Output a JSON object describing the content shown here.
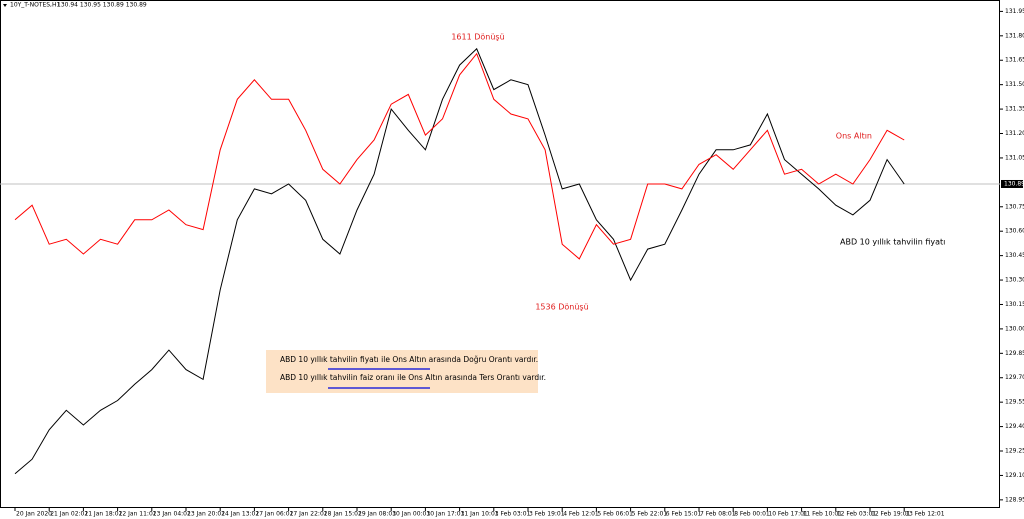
{
  "chart_data": {
    "type": "line",
    "symbol": "10Y_T-NOTES,H1",
    "ohlc": "130.94 130.95 130.89 130.89",
    "categories": [
      "20 Jan 2020",
      null,
      "21 Jan 02:01",
      null,
      "21 Jan 18:01",
      null,
      "22 Jan 11:01",
      null,
      "23 Jan 04:01",
      null,
      "23 Jan 20:01",
      null,
      "24 Jan 13:01",
      null,
      "27 Jan 06:01",
      null,
      "27 Jan 22:01",
      null,
      "28 Jan 15:01",
      null,
      "29 Jan 08:01",
      null,
      "30 Jan 00:01",
      null,
      "30 Jan 17:01",
      null,
      "31 Jan 10:01",
      null,
      "3 Feb 03:01",
      null,
      "3 Feb 19:01",
      null,
      "4 Feb 12:01",
      null,
      "5 Feb 06:01",
      null,
      "5 Feb 22:01",
      null,
      "6 Feb 15:01",
      null,
      "7 Feb 08:01",
      null,
      "8 Feb 00:01",
      null,
      "10 Feb 17:01",
      null,
      "11 Feb 10:01",
      null,
      "12 Feb 03:01",
      null,
      "12 Feb 19:01",
      null,
      "13 Feb 12:01"
    ],
    "series": [
      {
        "name": "ABD 10 yıllık tahvilin fiyatı",
        "color": "#000000",
        "values": [
          129.11,
          129.2,
          129.38,
          129.5,
          129.41,
          129.5,
          129.56,
          129.66,
          129.75,
          129.87,
          129.75,
          129.69,
          130.24,
          130.67,
          130.86,
          130.83,
          130.89,
          130.79,
          130.55,
          130.46,
          130.73,
          130.95,
          131.35,
          131.22,
          131.1,
          131.41,
          131.62,
          131.72,
          131.47,
          131.53,
          131.5,
          131.19,
          130.86,
          130.89,
          130.67,
          130.55,
          130.3,
          130.49,
          130.52,
          130.73,
          130.95,
          131.1,
          131.1,
          131.13,
          131.32,
          131.04,
          130.95,
          130.86,
          130.76,
          130.7,
          130.79,
          131.04,
          130.89
        ]
      },
      {
        "name": "Ons Altın",
        "color": "#ff0000",
        "values": [
          130.67,
          130.76,
          130.52,
          130.55,
          130.46,
          130.55,
          130.52,
          130.67,
          130.67,
          130.73,
          130.64,
          130.61,
          131.1,
          131.41,
          131.53,
          131.41,
          131.41,
          131.22,
          130.98,
          130.89,
          131.04,
          131.16,
          131.38,
          131.44,
          131.19,
          131.29,
          131.56,
          131.69,
          131.41,
          131.32,
          131.29,
          131.1,
          130.52,
          130.43,
          130.64,
          130.52,
          130.55,
          130.89,
          130.89,
          130.86,
          131.01,
          131.07,
          130.98,
          131.1,
          131.22,
          130.95,
          130.98,
          130.89,
          130.95,
          130.89,
          131.04,
          131.22,
          131.16
        ]
      }
    ],
    "ylim": [
      128.9,
      132.02
    ],
    "yticks": [
      131.95,
      {
        "value": 131.8,
        "label": "131.80"
      },
      131.65,
      {
        "value": 131.5,
        "label": "131.50"
      },
      131.35,
      {
        "value": 131.2,
        "label": "131.20"
      },
      131.05,
      130.75,
      {
        "value": 130.6,
        "label": "130.60"
      },
      130.45,
      {
        "value": 130.3,
        "label": "130.30"
      },
      130.15,
      {
        "value": 130,
        "label": "130.00"
      },
      129.85,
      {
        "value": 129.7,
        "label": "129.70"
      },
      129.55,
      {
        "value": 129.4,
        "label": "129.40"
      },
      129.25,
      {
        "value": 129.1,
        "label": "129.10"
      },
      128.95
    ],
    "current_price": 130.89,
    "annotations": [
      "1611 Dönüşü",
      "1536 Dönüşü"
    ],
    "note_box": [
      "ABD 10 yıllık tahvilin fiyatı ile Ons Altın arasında Doğru  Orantı vardır.",
      "ABD 10 yıllık tahvilin faiz oranı ile Ons Altın arasında Ters  Orantı vardır."
    ]
  }
}
